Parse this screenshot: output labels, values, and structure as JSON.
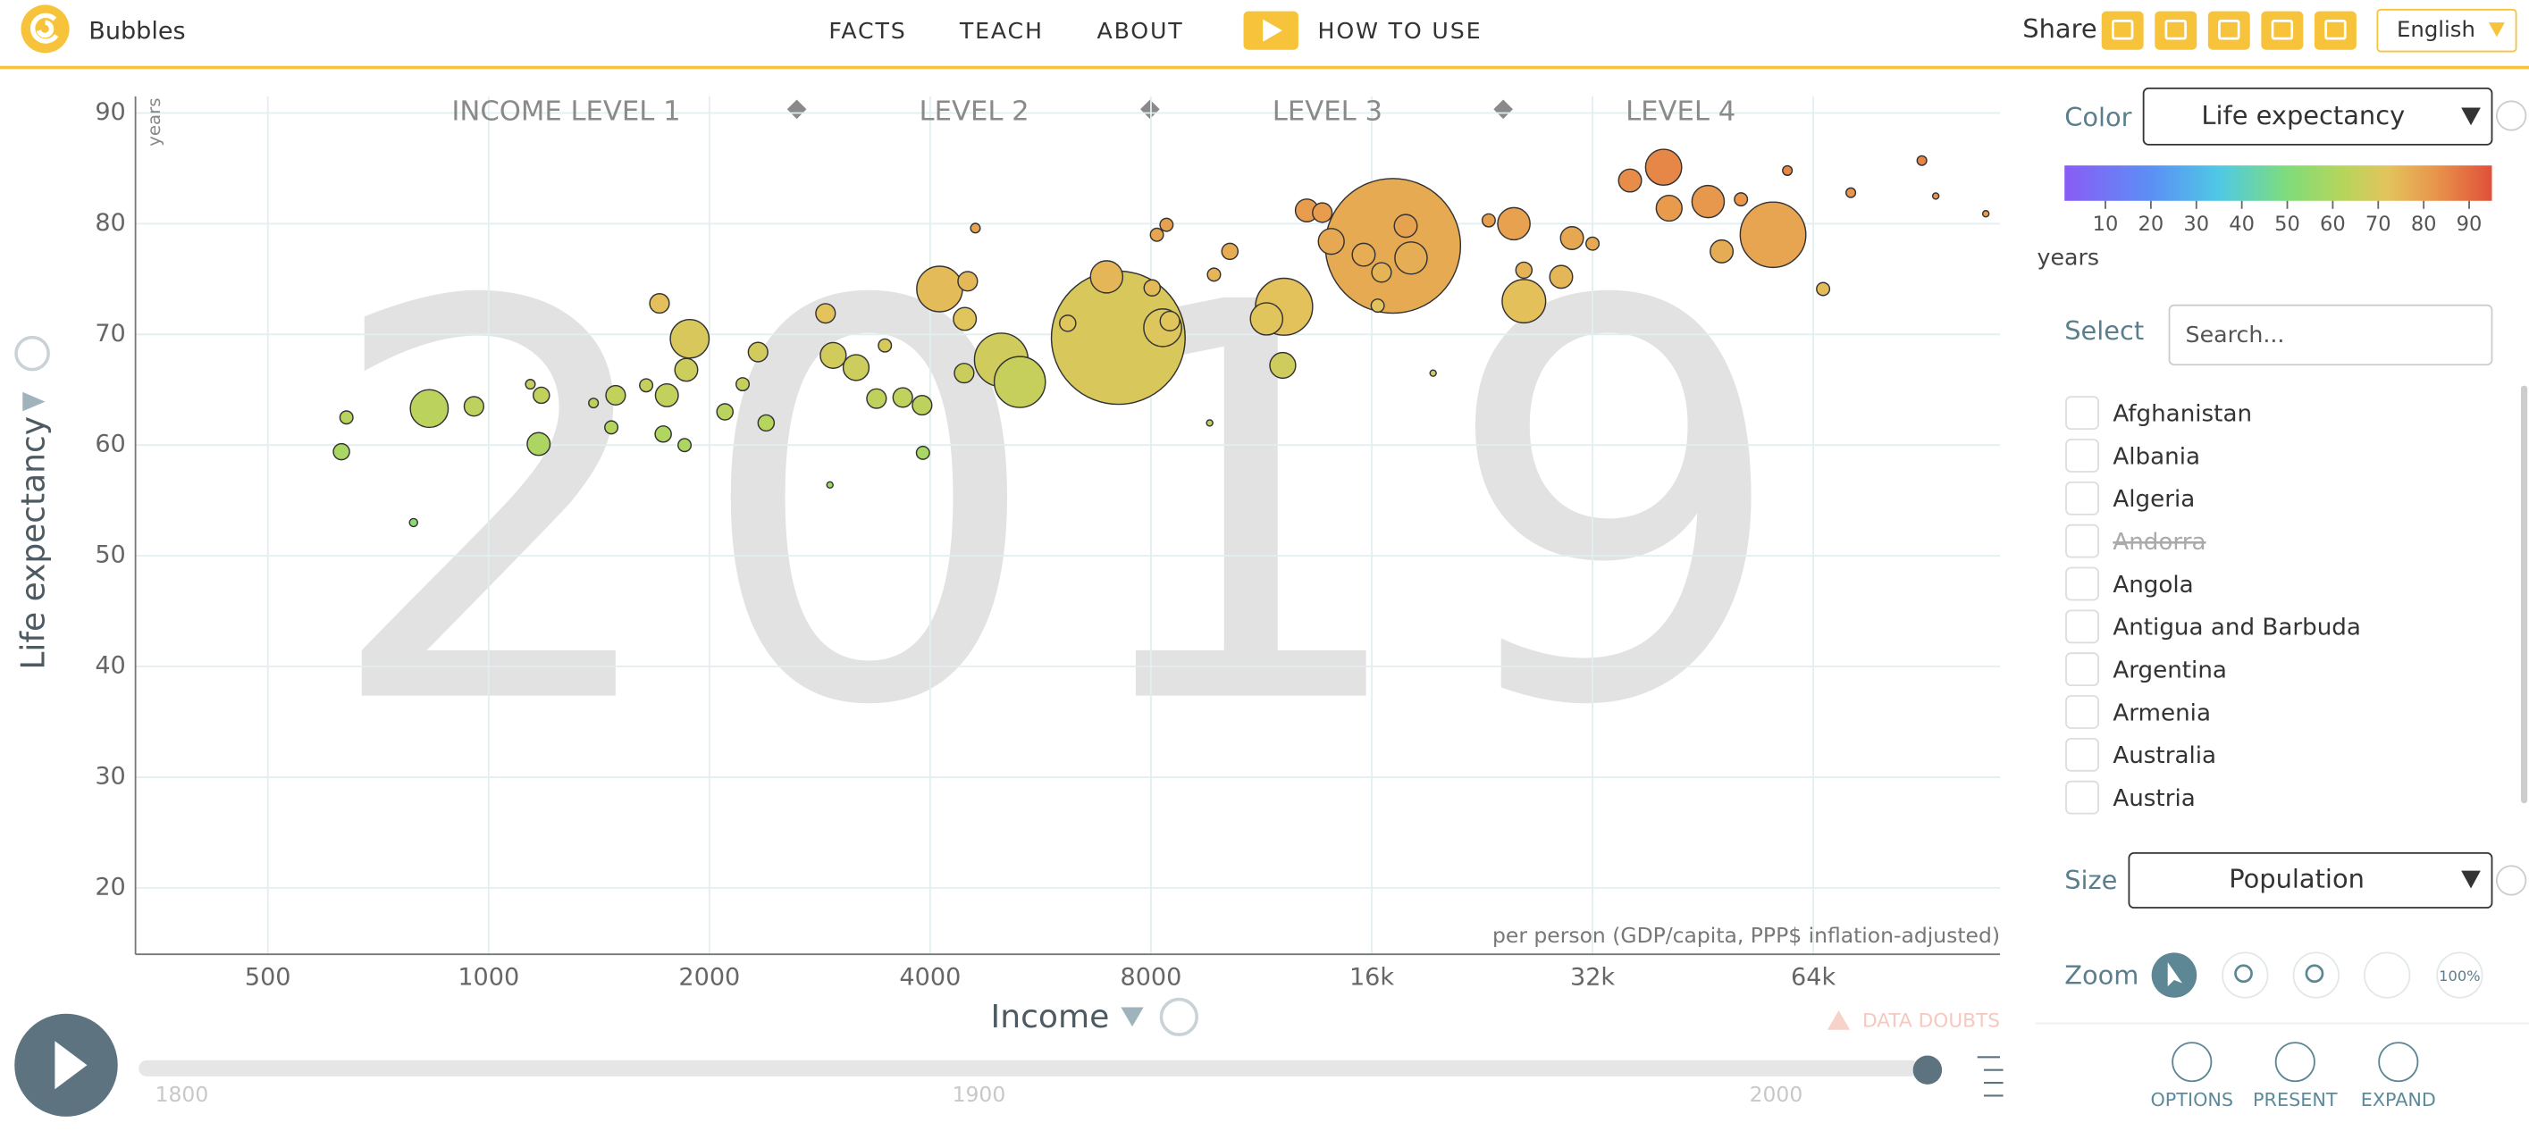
{
  "header": {
    "app_name": "Bubbles",
    "nav": [
      "FACTS",
      "TEACH",
      "ABOUT"
    ],
    "how_to_use": "HOW TO USE",
    "share": "Share",
    "language": "English"
  },
  "chart_data": {
    "type": "bubble",
    "y_label": "Life expectancy",
    "y_unit": "years",
    "x_label": "Income",
    "x_note": "per person (GDP/capita, PPP$ inflation-adjusted)",
    "data_doubts": "DATA DOUBTS",
    "income_levels": [
      "INCOME LEVEL 1",
      "LEVEL 2",
      "LEVEL 3",
      "LEVEL 4"
    ],
    "log_x": true,
    "grid": true,
    "xlim": [
      330,
      115000
    ],
    "xticks": [
      500,
      1000,
      2000,
      4000,
      8000,
      {
        "value": 16000,
        "label": "16k"
      },
      {
        "value": 32000,
        "label": "32k"
      },
      {
        "value": 64000,
        "label": "64k"
      }
    ],
    "ylim": [
      14,
      91.5
    ],
    "yticks": [
      20,
      30,
      40,
      50,
      60,
      70,
      80,
      90
    ],
    "x": [
      630,
      640,
      790,
      830,
      955,
      1170,
      1180,
      1140,
      1390,
      1490,
      1470,
      1710,
      1640,
      1750,
      1730,
      1850,
      1860,
      1880,
      2100,
      2220,
      2330,
      2390,
      2880,
      2950,
      3170,
      2920,
      3380,
      3470,
      3670,
      3900,
      4120,
      4500,
      4460,
      3910,
      4610,
      5000,
      5300,
      4450,
      7220,
      6960,
      6160,
      8300,
      8490,
      8030,
      8150,
      8400,
      10250,
      9750,
      12150,
      11500,
      12100,
      9620,
      13050,
      13700,
      17100,
      14090,
      15600,
      18100,
      16300,
      19400,
      23100,
      25000,
      25800,
      25800,
      30000,
      29000,
      36000,
      40000,
      40700,
      46000,
      48000,
      56400,
      51000,
      59000,
      66000,
      72000,
      90000,
      110000,
      94000,
      17800,
      16500,
      32000
    ],
    "values": [
      59.4,
      62.5,
      53.0,
      63.3,
      63.5,
      60.1,
      64.5,
      65.5,
      63.8,
      64.5,
      61.6,
      72.8,
      65.4,
      64.5,
      61.0,
      60.0,
      66.8,
      69.6,
      63.0,
      65.5,
      68.4,
      62.0,
      71.9,
      68.1,
      67.0,
      56.4,
      64.2,
      69.0,
      64.3,
      63.6,
      74.1,
      74.8,
      71.4,
      59.3,
      79.6,
      67.7,
      65.7,
      66.5,
      69.7,
      75.2,
      71.0,
      70.6,
      71.2,
      74.2,
      79.0,
      79.9,
      77.5,
      75.4,
      72.5,
      71.4,
      67.2,
      62.0,
      81.2,
      81.0,
      78.0,
      78.4,
      77.2,
      76.9,
      72.6,
      66.5,
      80.3,
      80.0,
      73.0,
      75.8,
      78.7,
      75.2,
      83.9,
      85.1,
      81.4,
      82.0,
      77.5,
      79.0,
      82.2,
      84.8,
      74.1,
      82.8,
      85.7,
      80.9,
      82.5,
      79.8,
      75.6,
      78.2
    ],
    "sizes": [
      20,
      13,
      5,
      110,
      29,
      40,
      20,
      7,
      7,
      29,
      13,
      29,
      13,
      40,
      20,
      13,
      40,
      115,
      20,
      13,
      29,
      20,
      29,
      51,
      51,
      3,
      29,
      13,
      29,
      29,
      160,
      29,
      40,
      13,
      7,
      220,
      200,
      29,
      1370,
      80,
      20,
      110,
      29,
      20,
      13,
      13,
      20,
      13,
      250,
      80,
      51,
      3,
      40,
      29,
      1400,
      51,
      40,
      80,
      13,
      3,
      13,
      80,
      145,
      20,
      40,
      40,
      40,
      100,
      51,
      80,
      40,
      330,
      13,
      7,
      13,
      7,
      7,
      3,
      3,
      40,
      29,
      13
    ],
    "color_legend": {
      "lim": [
        1,
        95
      ],
      "ticks": [
        10,
        20,
        30,
        40,
        50,
        60,
        70,
        80,
        90
      ],
      "unit": "years",
      "domain": [
        1,
        20,
        35,
        50,
        62,
        72,
        82,
        95
      ],
      "colors": [
        "#8a5cf5",
        "#5b8ff5",
        "#4fc9e6",
        "#7fdc7a",
        "#b5d55c",
        "#e3c45c",
        "#e8984c",
        "#e0503a"
      ]
    }
  },
  "timeline": {
    "lim": [
      1795,
      2020
    ],
    "ticks": [
      1800,
      1900,
      2000
    ],
    "year": 2019
  },
  "panel": {
    "color_label": "Color",
    "color_indicator": "Life expectancy",
    "select_label": "Select",
    "search_placeholder": "Search...",
    "countries": [
      {
        "name": "Afghanistan"
      },
      {
        "name": "Albania"
      },
      {
        "name": "Algeria"
      },
      {
        "name": "Andorra",
        "available": false
      },
      {
        "name": "Angola"
      },
      {
        "name": "Antigua and Barbuda"
      },
      {
        "name": "Argentina"
      },
      {
        "name": "Armenia"
      },
      {
        "name": "Australia"
      },
      {
        "name": "Austria"
      }
    ],
    "size_label": "Size",
    "size_indicator": "Population",
    "zoom_label": "Zoom",
    "zoom_reset": "100%",
    "buttons": [
      "OPTIONS",
      "PRESENT",
      "EXPAND"
    ]
  }
}
